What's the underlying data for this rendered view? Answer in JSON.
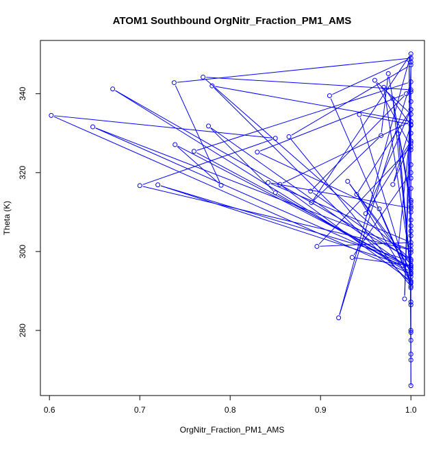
{
  "chart_data": {
    "type": "scatter",
    "title": "ATOM1 Southbound OrgNitr_Fraction_PM1_AMS",
    "xlabel": "OrgNitr_Fraction_PM1_AMS",
    "ylabel": "Theta (K)",
    "xlim": [
      0.59,
      1.015
    ],
    "ylim": [
      263.5,
      353.5
    ],
    "xticks": [
      0.6,
      0.7,
      0.8,
      0.9,
      1.0
    ],
    "xtick_labels": [
      "0.6",
      "0.7",
      "0.8",
      "0.9",
      "1.0"
    ],
    "yticks": [
      280,
      300,
      320,
      340
    ],
    "ytick_labels": [
      "280",
      "300",
      "320",
      "340"
    ],
    "grid": false,
    "legend": "none",
    "color": "#0000ff",
    "series": [
      {
        "style": "line+points",
        "x": [
          1.0,
          0.77,
          1.0,
          0.67,
          1.0,
          0.602,
          0.85,
          0.7,
          1.0,
          0.648,
          1.0,
          0.739,
          0.79,
          0.738,
          1.0,
          0.91,
          1.0,
          0.78,
          1.0,
          0.855,
          1.0,
          0.965,
          0.83,
          0.995,
          0.889,
          1.0,
          0.72,
          1.0,
          0.76,
          1.0,
          0.92,
          1.0,
          0.89,
          0.967,
          0.975,
          1.0,
          1.0,
          0.93,
          1.0,
          0.776,
          0.85,
          1.0,
          0.98,
          1.0,
          0.842,
          1.0,
          0.896,
          1.0,
          0.96,
          1.0,
          0.993,
          1.0,
          0.865,
          1.0,
          0.943,
          1.0,
          0.98,
          1.0,
          0.95,
          1.0,
          0.94,
          1.0,
          0.986,
          1.0,
          0.986,
          1.0,
          0.97,
          1.0,
          0.935,
          1.0,
          0.998,
          1.0
        ],
        "y": [
          341.0,
          344.2,
          298.0,
          341.2,
          294.3,
          334.5,
          328.7,
          316.7,
          300.4,
          331.6,
          296.0,
          327.1,
          316.8,
          342.8,
          349.0,
          339.5,
          292.0,
          342.0,
          333.0,
          317.0,
          292.5,
          310.8,
          325.2,
          340.0,
          315.3,
          297.6,
          316.9,
          296.0,
          325.4,
          343.0,
          283.2,
          350.1,
          312.4,
          329.4,
          345.1,
          312.5,
          296.6,
          317.8,
          295.5,
          331.8,
          314.9,
          294.8,
          338.7,
          311.0,
          317.5,
          302.3,
          301.3,
          326.5,
          343.4,
          334.8,
          288.0,
          347.3,
          329.1,
          291.2,
          334.7,
          332.2,
          317.0,
          328.0,
          309.6,
          336.0,
          314.5,
          292.2,
          329.8,
          294.4,
          301.0,
          332.0,
          341.6,
          296.4,
          298.5,
          320.0,
          348.6,
          266.0
        ]
      },
      {
        "style": "points",
        "x": [
          1.0,
          1.0,
          1.0,
          1.0,
          1.0,
          1.0,
          1.0,
          1.0,
          1.0,
          1.0,
          1.0,
          1.0,
          1.0,
          1.0,
          1.0,
          1.0,
          1.0,
          1.0,
          1.0,
          1.0,
          1.0,
          1.0,
          1.0,
          1.0,
          1.0,
          1.0,
          1.0,
          1.0
        ],
        "y": [
          340.5,
          338.0,
          336.0,
          330.0,
          327.5,
          325.8,
          322.0,
          318.6,
          316.0,
          313.0,
          311.5,
          310.0,
          308.0,
          306.5,
          305.2,
          304.0,
          301.5,
          299.8,
          293.6,
          290.8,
          287.2,
          286.5,
          280.0,
          279.5,
          277.5,
          274.0,
          272.5,
          348.0
        ]
      }
    ]
  }
}
